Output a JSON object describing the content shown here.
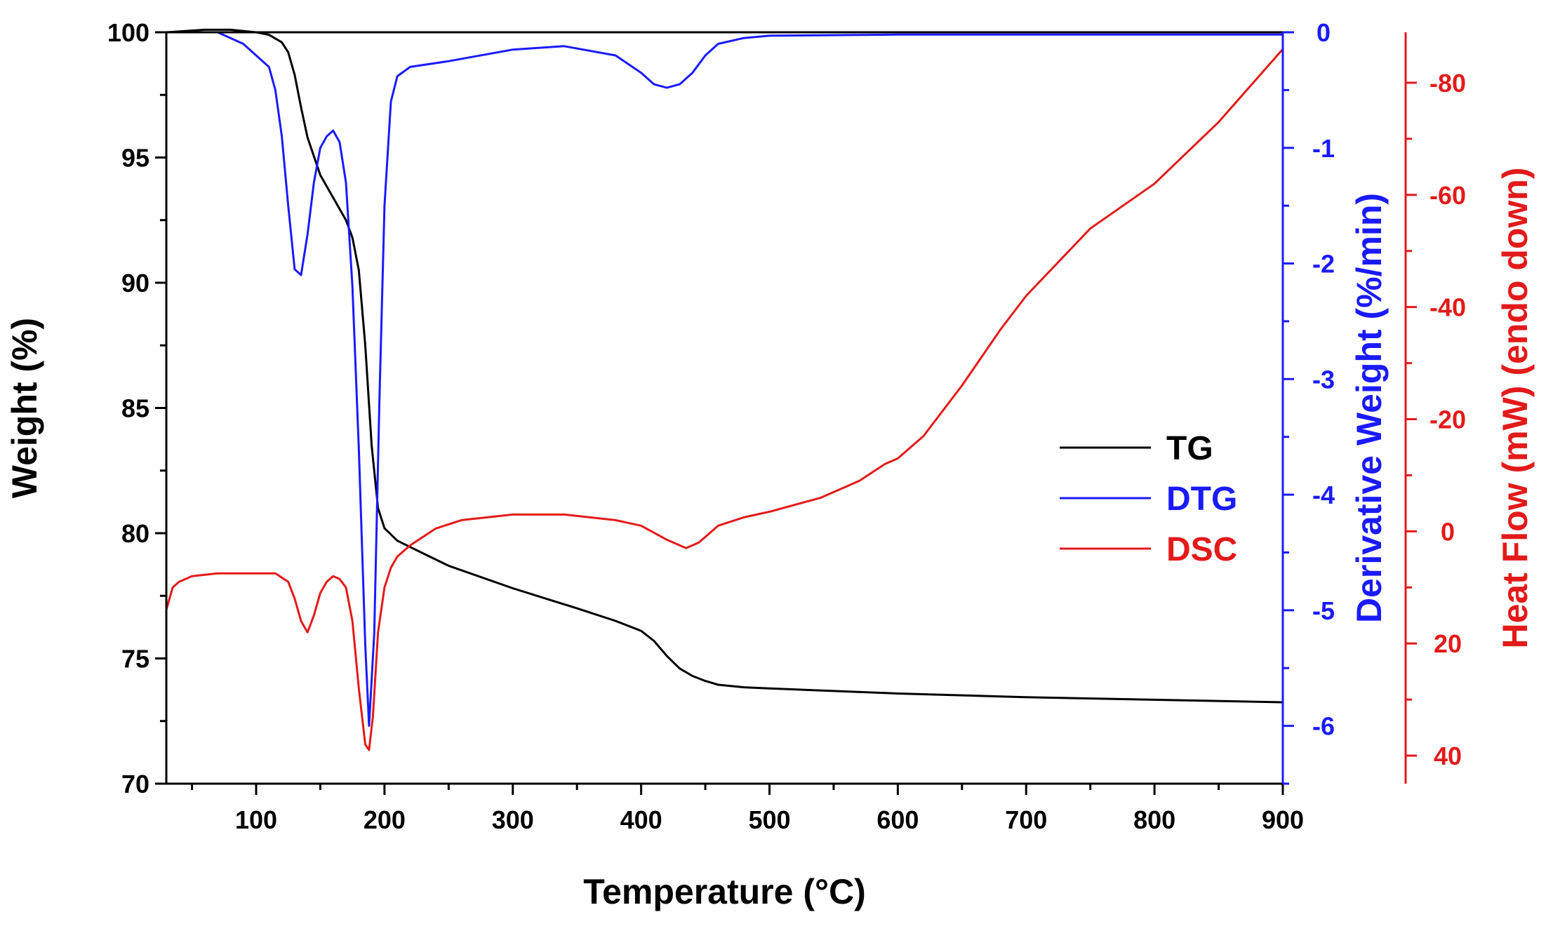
{
  "chart_data": {
    "type": "line",
    "title": "",
    "xlabel": "Temperature (°C)",
    "xlim": [
      30,
      900
    ],
    "xticks": [
      100,
      200,
      300,
      400,
      500,
      600,
      700,
      800,
      900
    ],
    "axes": {
      "left": {
        "label": "Weight (%)",
        "lim": [
          70,
          100
        ],
        "ticks": [
          70,
          75,
          80,
          85,
          90,
          95,
          100
        ],
        "color": "#000000"
      },
      "right1": {
        "label": "Derivative Weight (%/min)",
        "lim": [
          -6.5,
          0
        ],
        "ticks": [
          0,
          -1,
          -2,
          -3,
          -4,
          -5,
          -6
        ],
        "color": "#1a1aff"
      },
      "right2": {
        "label": "Heat Flow (mW) (endo down)",
        "lim": [
          45,
          -89
        ],
        "ticks": [
          -80,
          -60,
          -40,
          -20,
          0,
          20,
          40
        ],
        "color": "#e31a1a"
      }
    },
    "series": [
      {
        "name": "TG",
        "axis": "left",
        "color": "#000000",
        "x": [
          30,
          60,
          80,
          100,
          110,
          120,
          125,
          130,
          135,
          140,
          150,
          160,
          170,
          175,
          180,
          185,
          190,
          195,
          200,
          210,
          230,
          250,
          300,
          350,
          380,
          400,
          410,
          420,
          430,
          440,
          450,
          460,
          480,
          500,
          600,
          700,
          800,
          900
        ],
        "y": [
          100,
          100.1,
          100.1,
          100.0,
          99.9,
          99.6,
          99.2,
          98.3,
          97.0,
          95.8,
          94.3,
          93.4,
          92.5,
          91.8,
          90.5,
          87.5,
          83.5,
          81.0,
          80.2,
          79.7,
          79.2,
          78.7,
          77.8,
          77.0,
          76.5,
          76.1,
          75.7,
          75.1,
          74.6,
          74.3,
          74.1,
          73.95,
          73.85,
          73.8,
          73.6,
          73.45,
          73.35,
          73.25
        ]
      },
      {
        "name": "DTG",
        "axis": "right1",
        "color": "#1a1aff",
        "x": [
          30,
          70,
          90,
          100,
          110,
          115,
          120,
          125,
          130,
          135,
          140,
          145,
          150,
          155,
          160,
          165,
          170,
          175,
          180,
          185,
          188,
          192,
          196,
          200,
          205,
          210,
          220,
          250,
          300,
          340,
          380,
          400,
          410,
          420,
          430,
          440,
          450,
          460,
          480,
          500,
          600,
          700,
          800,
          900
        ],
        "y": [
          0,
          0,
          -0.1,
          -0.2,
          -0.3,
          -0.5,
          -0.9,
          -1.5,
          -2.05,
          -2.1,
          -1.75,
          -1.3,
          -1.0,
          -0.9,
          -0.85,
          -0.95,
          -1.3,
          -2.2,
          -3.6,
          -5.3,
          -6.0,
          -5.2,
          -3.2,
          -1.5,
          -0.6,
          -0.38,
          -0.3,
          -0.25,
          -0.15,
          -0.12,
          -0.2,
          -0.35,
          -0.45,
          -0.48,
          -0.45,
          -0.35,
          -0.2,
          -0.1,
          -0.05,
          -0.03,
          -0.02,
          -0.02,
          -0.02,
          -0.02
        ]
      },
      {
        "name": "DSC",
        "axis": "right2",
        "color": "#e31a1a",
        "x": [
          30,
          35,
          40,
          50,
          70,
          100,
          115,
          125,
          130,
          135,
          140,
          145,
          150,
          155,
          160,
          165,
          170,
          175,
          180,
          185,
          188,
          191,
          195,
          200,
          205,
          210,
          220,
          240,
          260,
          300,
          340,
          380,
          400,
          420,
          435,
          445,
          460,
          480,
          500,
          540,
          570,
          590,
          600,
          620,
          650,
          680,
          700,
          750,
          800,
          850,
          900
        ],
        "y": [
          14,
          10,
          9,
          8,
          7.5,
          7.5,
          7.5,
          9,
          12,
          16,
          18,
          15,
          11,
          9,
          8,
          8.5,
          10,
          16,
          28,
          38,
          39,
          33,
          18,
          10,
          6.5,
          4.5,
          2.5,
          -0.5,
          -2.0,
          -3.0,
          -3.0,
          -2.0,
          -1.0,
          1.5,
          3.0,
          2.0,
          -1.0,
          -2.5,
          -3.5,
          -6,
          -9,
          -12,
          -13,
          -17,
          -26,
          -36,
          -42,
          -54,
          -62,
          -73,
          -86
        ]
      }
    ],
    "legend": {
      "placement": "center-right",
      "entries": [
        "TG",
        "DTG",
        "DSC"
      ]
    }
  }
}
